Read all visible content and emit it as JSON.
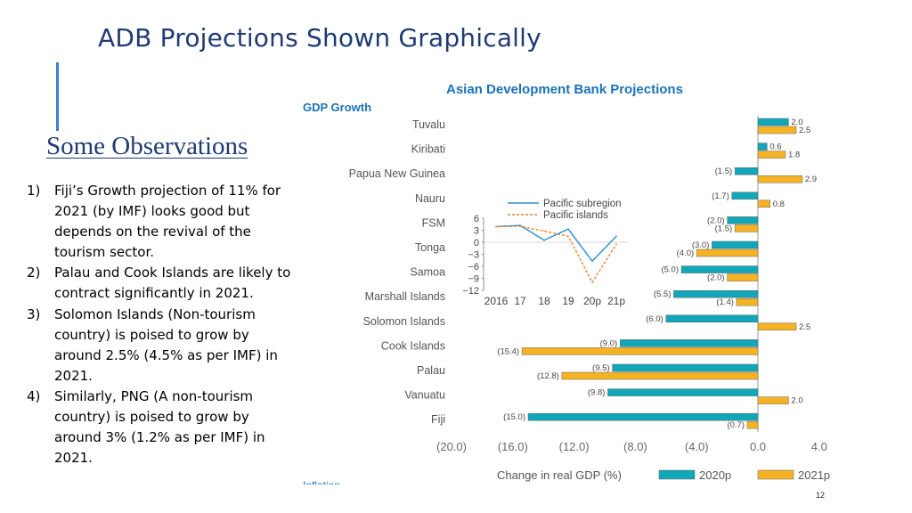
{
  "slide": {
    "title": "ADB Projections Shown Graphically",
    "observations_title": "Some Observations",
    "observations": [
      {
        "num": "1)",
        "text": "Fiji’s Growth projection of 11% for 2021 (by IMF) looks good but depends on the revival of the tourism sector."
      },
      {
        "num": "2)",
        "text": "Palau and Cook Islands are likely to contract significantly in 2021."
      },
      {
        "num": "3)",
        "text": "Solomon Islands (Non-tourism country) is poised to grow by around 2.5% (4.5% as per IMF) in 2021."
      },
      {
        "num": "4)",
        "text": "Similarly, PNG (A non-tourism country) is poised to grow by around 3% (1.2% as per IMF) in 2021."
      }
    ],
    "cutoff_text": "Inflation",
    "page_number": "12"
  },
  "chart_data": [
    {
      "type": "bar",
      "orientation": "horizontal",
      "title": "Asian Development Bank Projections",
      "subtitle": "GDP Growth",
      "categories": [
        "Tuvalu",
        "Kiribati",
        "Papua New Guinea",
        "Nauru",
        "FSM",
        "Tonga",
        "Samoa",
        "Marshall Islands",
        "Solomon Islands",
        "Cook Islands",
        "Palau",
        "Vanuatu",
        "Fiji"
      ],
      "series": [
        {
          "name": "2020p",
          "color": "#11a6b8",
          "values": [
            2.0,
            0.6,
            -1.5,
            -1.7,
            -2.0,
            -3.0,
            -5.0,
            -5.5,
            -6.0,
            -9.0,
            -9.5,
            -9.8,
            -15.0
          ],
          "labels": [
            "2.0",
            "0.6",
            "(1.5)",
            "(1.7)",
            "(2.0)",
            "(3.0)",
            "(5.0)",
            "(5.5)",
            "(6.0)",
            "(9.0)",
            "(9.5)",
            "(9.8)",
            "(15.0)"
          ]
        },
        {
          "name": "2021p",
          "color": "#f5b324",
          "values": [
            2.5,
            1.8,
            2.9,
            0.8,
            -1.5,
            -4.0,
            -2.0,
            -1.4,
            2.5,
            -15.4,
            -12.8,
            2.0,
            -0.7
          ],
          "labels": [
            "2.5",
            "1.8",
            "2.9",
            "0.8",
            "(1.5)",
            "(4.0)",
            "(2.0)",
            "(1.4)",
            "2.5",
            "(15.4)",
            "(12.8)",
            "2.0",
            "(0.7)"
          ]
        }
      ],
      "xlim": [
        -20.0,
        4.0
      ],
      "xticks": [
        -20,
        -16,
        -12,
        -8,
        -4,
        0,
        4
      ],
      "xtick_labels": [
        "(20.0)",
        "(16.0)",
        "(12.0)",
        "(8.0)",
        "(4.0)",
        "0.0",
        "4.0"
      ],
      "xlabel": "Change in real GDP (%)",
      "legend": [
        "2020p",
        "2021p"
      ]
    },
    {
      "type": "line",
      "title": "",
      "x": [
        "2016",
        "17",
        "18",
        "19",
        "20p",
        "21p"
      ],
      "series": [
        {
          "name": "Pacific subregion",
          "style": "solid",
          "color": "#2a8fd1",
          "values": [
            3.9,
            4.2,
            0.5,
            3.3,
            -4.7,
            1.5
          ]
        },
        {
          "name": "Pacific islands",
          "style": "dashed",
          "color": "#f08030",
          "values": [
            3.9,
            4.0,
            2.8,
            1.5,
            -10.0,
            -0.5
          ]
        }
      ],
      "ylim": [
        -12,
        6
      ],
      "yticks": [
        6,
        3,
        0,
        -3,
        -6,
        -9,
        -12
      ],
      "ytick_labels": [
        "6",
        "3",
        "0",
        "−3",
        "−6",
        "−9",
        "−12"
      ]
    }
  ]
}
